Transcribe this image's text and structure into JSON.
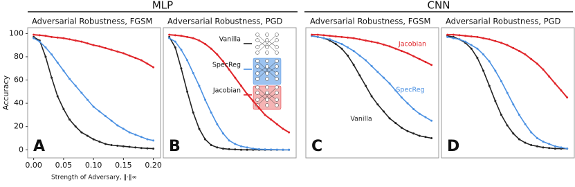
{
  "groups": [
    {
      "title": "MLP"
    },
    {
      "title": "CNN"
    }
  ],
  "chart_data": [
    {
      "type": "line",
      "title": "Adversarial Robustness, FGSM",
      "panel_label": "A",
      "x_label": "Strength of Adversary, ‖·‖∞",
      "y_label": "Accuracy",
      "x": [
        0,
        0.01,
        0.02,
        0.03,
        0.04,
        0.05,
        0.06,
        0.07,
        0.08,
        0.09,
        0.1,
        0.11,
        0.12,
        0.13,
        0.14,
        0.15,
        0.16,
        0.17,
        0.18,
        0.19,
        0.2
      ],
      "xlim": [
        -0.01,
        0.212
      ],
      "ylim": [
        -7,
        105
      ],
      "xticks": [
        {
          "value": 0,
          "label": "0.00"
        },
        0.05,
        {
          "value": 0.1,
          "label": "0.10"
        },
        0.15,
        {
          "value": 0.2,
          "label": "0.20"
        }
      ],
      "yticks": [
        0,
        20,
        40,
        60,
        80,
        100
      ],
      "series": [
        {
          "color": "#222222",
          "values": [
            97,
            94,
            80,
            62,
            46,
            35,
            26,
            20,
            15,
            12,
            9,
            7,
            5,
            4,
            3.5,
            3,
            2.5,
            2,
            1.5,
            1.2,
            1
          ]
        },
        {
          "color": "#4a90e2",
          "values": [
            96,
            93,
            88,
            82,
            75,
            68,
            61,
            55,
            49,
            43,
            37,
            33,
            29,
            25,
            21,
            18,
            15,
            13,
            11,
            9,
            8
          ]
        },
        {
          "color": "#e0252a",
          "values": [
            99,
            98.5,
            98,
            97,
            96.5,
            96,
            95,
            94,
            93,
            91.5,
            90,
            89,
            87.5,
            86,
            84.5,
            83,
            81,
            79,
            77,
            74,
            71
          ]
        }
      ]
    },
    {
      "type": "line",
      "title": "Adversarial Robustness, PGD",
      "panel_label": "B",
      "x": [
        0,
        0.01,
        0.02,
        0.03,
        0.04,
        0.05,
        0.06,
        0.07,
        0.08,
        0.09,
        0.1,
        0.11,
        0.12,
        0.13,
        0.14,
        0.15,
        0.16,
        0.17,
        0.18,
        0.19,
        0.2
      ],
      "xlim": [
        -0.01,
        0.212
      ],
      "ylim": [
        -7,
        105
      ],
      "series": [
        {
          "name": "Vanilla",
          "color": "#222222",
          "values": [
            97,
            88,
            70,
            50,
            32,
            18,
            9,
            4,
            2,
            1,
            0.5,
            0.3,
            0,
            0,
            0,
            0,
            0,
            0,
            0,
            0,
            0
          ]
        },
        {
          "name": "SpecReg",
          "color": "#4a90e2",
          "values": [
            96,
            93,
            86,
            77,
            66,
            55,
            43,
            32,
            22,
            14,
            8,
            5,
            3,
            2,
            1,
            0.5,
            0.3,
            0.2,
            0.1,
            0,
            0
          ]
        },
        {
          "name": "Jacobian",
          "color": "#e0252a",
          "values": [
            99,
            98.5,
            98,
            97,
            96,
            94,
            91,
            87,
            82,
            76,
            69,
            62,
            55,
            48,
            42,
            36,
            30,
            26,
            22,
            18,
            15
          ]
        }
      ]
    },
    {
      "type": "line",
      "title": "Adversarial Robustness, FGSM",
      "panel_label": "C",
      "x": [
        0,
        0.01,
        0.02,
        0.03,
        0.04,
        0.05,
        0.06,
        0.07,
        0.08,
        0.09,
        0.1,
        0.11,
        0.12,
        0.13,
        0.14,
        0.15,
        0.16,
        0.17,
        0.18,
        0.19,
        0.2
      ],
      "xlim": [
        -0.01,
        0.212
      ],
      "ylim": [
        -7,
        105
      ],
      "series": [
        {
          "name": "Vanilla",
          "color": "#222222",
          "values": [
            98,
            97,
            96,
            94,
            91,
            87,
            81,
            73,
            64,
            55,
            46,
            39,
            33,
            27,
            23,
            19,
            16,
            14,
            12,
            11,
            10
          ]
        },
        {
          "name": "SpecReg",
          "color": "#4a90e2",
          "values": [
            98,
            97,
            96,
            95,
            93,
            91,
            88,
            85,
            81,
            77,
            72,
            67,
            62,
            57,
            51,
            45,
            40,
            35,
            31,
            28,
            25
          ]
        },
        {
          "name": "Jacobian",
          "color": "#e0252a",
          "values": [
            99,
            99,
            98.5,
            98,
            97.5,
            97,
            96.5,
            96,
            95,
            94,
            93,
            92,
            90.5,
            89,
            87,
            85,
            83,
            80.5,
            78,
            75.5,
            73
          ]
        }
      ]
    },
    {
      "type": "line",
      "title": "Adversarial Robustness, PGD",
      "panel_label": "D",
      "x": [
        0,
        0.01,
        0.02,
        0.03,
        0.04,
        0.05,
        0.06,
        0.07,
        0.08,
        0.09,
        0.1,
        0.11,
        0.12,
        0.13,
        0.14,
        0.15,
        0.16,
        0.17,
        0.18,
        0.19,
        0.2
      ],
      "xlim": [
        -0.01,
        0.212
      ],
      "ylim": [
        -7,
        105
      ],
      "series": [
        {
          "color": "#222222",
          "values": [
            98,
            97,
            95,
            92,
            87,
            79,
            68,
            55,
            42,
            30,
            21,
            14,
            9,
            6,
            4,
            3,
            2,
            1.5,
            1,
            1,
            1
          ]
        },
        {
          "color": "#4a90e2",
          "values": [
            97,
            96,
            95,
            93,
            90,
            87,
            82,
            76,
            68,
            59,
            49,
            39,
            30,
            22,
            15,
            10,
            7,
            5,
            3,
            2,
            1
          ]
        },
        {
          "color": "#e0252a",
          "values": [
            99,
            99,
            98.5,
            98,
            97.5,
            97,
            96,
            95,
            93.5,
            92,
            90,
            87.5,
            85,
            82,
            78,
            74,
            69,
            63,
            57,
            51,
            45
          ]
        }
      ]
    }
  ]
}
